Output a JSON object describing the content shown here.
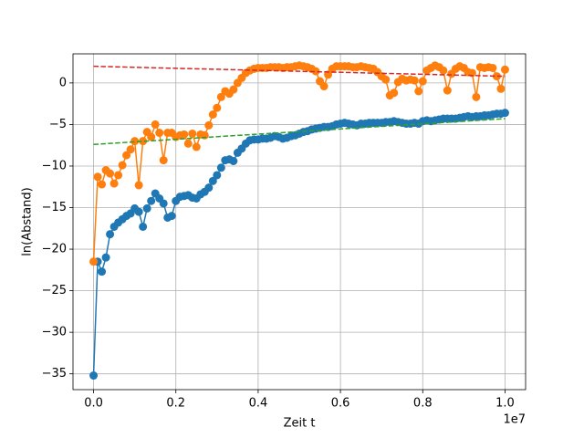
{
  "chart_data": {
    "type": "line",
    "xlabel": "Zeit t",
    "ylabel": "ln(Abstand)",
    "x_offset_label": "1e7",
    "x": [
      0,
      100000,
      200000,
      300000,
      400000,
      500000,
      600000,
      700000,
      800000,
      900000,
      1000000,
      1100000,
      1200000,
      1300000,
      1400000,
      1500000,
      1600000,
      1700000,
      1800000,
      1900000,
      2000000,
      2100000,
      2200000,
      2300000,
      2400000,
      2500000,
      2600000,
      2700000,
      2800000,
      2900000,
      3000000,
      3100000,
      3200000,
      3300000,
      3400000,
      3500000,
      3600000,
      3700000,
      3800000,
      3900000,
      4000000,
      4100000,
      4200000,
      4300000,
      4400000,
      4500000,
      4600000,
      4700000,
      4800000,
      4900000,
      5000000,
      5100000,
      5200000,
      5300000,
      5400000,
      5500000,
      5600000,
      5700000,
      5800000,
      5900000,
      6000000,
      6100000,
      6200000,
      6300000,
      6400000,
      6500000,
      6600000,
      6700000,
      6800000,
      6900000,
      7000000,
      7100000,
      7200000,
      7300000,
      7400000,
      7500000,
      7600000,
      7700000,
      7800000,
      7900000,
      8000000,
      8100000,
      8200000,
      8300000,
      8400000,
      8500000,
      8600000,
      8700000,
      8800000,
      8900000,
      9000000,
      9100000,
      9200000,
      9300000,
      9400000,
      9500000,
      9600000,
      9700000,
      9800000,
      9900000,
      10000000
    ],
    "series": [
      {
        "color": "#1f77b4",
        "marker": "o",
        "linestyle": "solid",
        "values": [
          -35.2,
          -21.5,
          -22.7,
          -21,
          -18.2,
          -17.3,
          -16.8,
          -16.4,
          -16,
          -15.7,
          -15.1,
          -15.5,
          -17.3,
          -15.1,
          -14.2,
          -13.3,
          -13.9,
          -14.5,
          -16.2,
          -16,
          -14.2,
          -13.7,
          -13.6,
          -13.5,
          -13.8,
          -13.9,
          -13.4,
          -13.1,
          -12.6,
          -11.8,
          -11.1,
          -10.2,
          -9.3,
          -9.2,
          -9.4,
          -8.4,
          -7.9,
          -7.3,
          -6.9,
          -6.8,
          -6.8,
          -6.7,
          -6.7,
          -6.6,
          -6.4,
          -6.5,
          -6.7,
          -6.6,
          -6.4,
          -6.3,
          -6.1,
          -5.9,
          -5.8,
          -5.6,
          -5.5,
          -5.4,
          -5.3,
          -5.3,
          -5.2,
          -5.0,
          -4.9,
          -4.8,
          -4.9,
          -5.0,
          -5.1,
          -4.9,
          -4.9,
          -4.8,
          -4.8,
          -4.8,
          -4.8,
          -4.7,
          -4.7,
          -4.6,
          -4.7,
          -4.8,
          -4.9,
          -4.9,
          -4.8,
          -4.9,
          -4.6,
          -4.5,
          -4.6,
          -4.5,
          -4.4,
          -4.3,
          -4.3,
          -4.3,
          -4.3,
          -4.2,
          -4.1,
          -4.0,
          -4.1,
          -4.0,
          -4.0,
          -3.9,
          -3.9,
          -3.8,
          -3.7,
          -3.7,
          -3.6
        ]
      },
      {
        "color": "#ff7f0e",
        "marker": "o",
        "linestyle": "solid",
        "values": [
          -21.5,
          -11.3,
          -12.2,
          -10.5,
          -10.9,
          -12.1,
          -11.1,
          -9.9,
          -8.7,
          -8,
          -7,
          -12.3,
          -7,
          -5.9,
          -6.5,
          -5,
          -6,
          -9.3,
          -6,
          -6,
          -6.5,
          -6.3,
          -6.2,
          -7.3,
          -6.1,
          -7.7,
          -6.2,
          -6.3,
          -5.1,
          -3.8,
          -3.0,
          -1.7,
          -1.0,
          -1.3,
          -0.8,
          0.0,
          0.6,
          1.2,
          1.5,
          1.7,
          1.8,
          1.8,
          1.8,
          1.9,
          1.9,
          1.9,
          1.8,
          1.9,
          1.9,
          2.0,
          2.1,
          2.0,
          1.9,
          1.7,
          1.4,
          0.2,
          -0.4,
          1.0,
          1.7,
          2.0,
          2.0,
          2.0,
          2.0,
          1.9,
          1.9,
          2.0,
          1.9,
          1.8,
          1.7,
          1.3,
          0.8,
          0.4,
          -1.5,
          -1.2,
          0.1,
          0.5,
          0.3,
          0.4,
          0.3,
          -1.0,
          0.2,
          1.5,
          1.8,
          2.1,
          1.9,
          1.5,
          -0.9,
          1.1,
          1.7,
          2.0,
          1.8,
          1.3,
          1.2,
          -1.7,
          1.9,
          1.8,
          1.9,
          1.8,
          0.8,
          -0.7,
          1.6
        ]
      },
      {
        "color": "#2ca02c",
        "marker": "none",
        "linestyle": "dashed",
        "x": [
          0,
          10000000
        ],
        "values": [
          -7.4,
          -4.3
        ]
      },
      {
        "color": "#d62728",
        "marker": "none",
        "linestyle": "dashed",
        "x": [
          0,
          10000000
        ],
        "values": [
          2.0,
          0.8
        ]
      }
    ],
    "xlim": [
      -500000,
      10500000
    ],
    "xticks": [
      {
        "value": 0,
        "label": "0.0"
      },
      {
        "value": 2000000,
        "label": "0.2"
      },
      {
        "value": 4000000,
        "label": "0.4"
      },
      {
        "value": 6000000,
        "label": "0.6"
      },
      {
        "value": 8000000,
        "label": "0.8"
      },
      {
        "value": 10000000,
        "label": "1.0"
      }
    ],
    "ylim": [
      -36.9,
      3.5
    ],
    "yticks": [
      {
        "value": -35,
        "label": "−35"
      },
      {
        "value": -30,
        "label": "−30"
      },
      {
        "value": -25,
        "label": "−25"
      },
      {
        "value": -20,
        "label": "−20"
      },
      {
        "value": -15,
        "label": "−15"
      },
      {
        "value": -10,
        "label": "−10"
      },
      {
        "value": -5,
        "label": "−5"
      },
      0
    ],
    "grid": true
  }
}
